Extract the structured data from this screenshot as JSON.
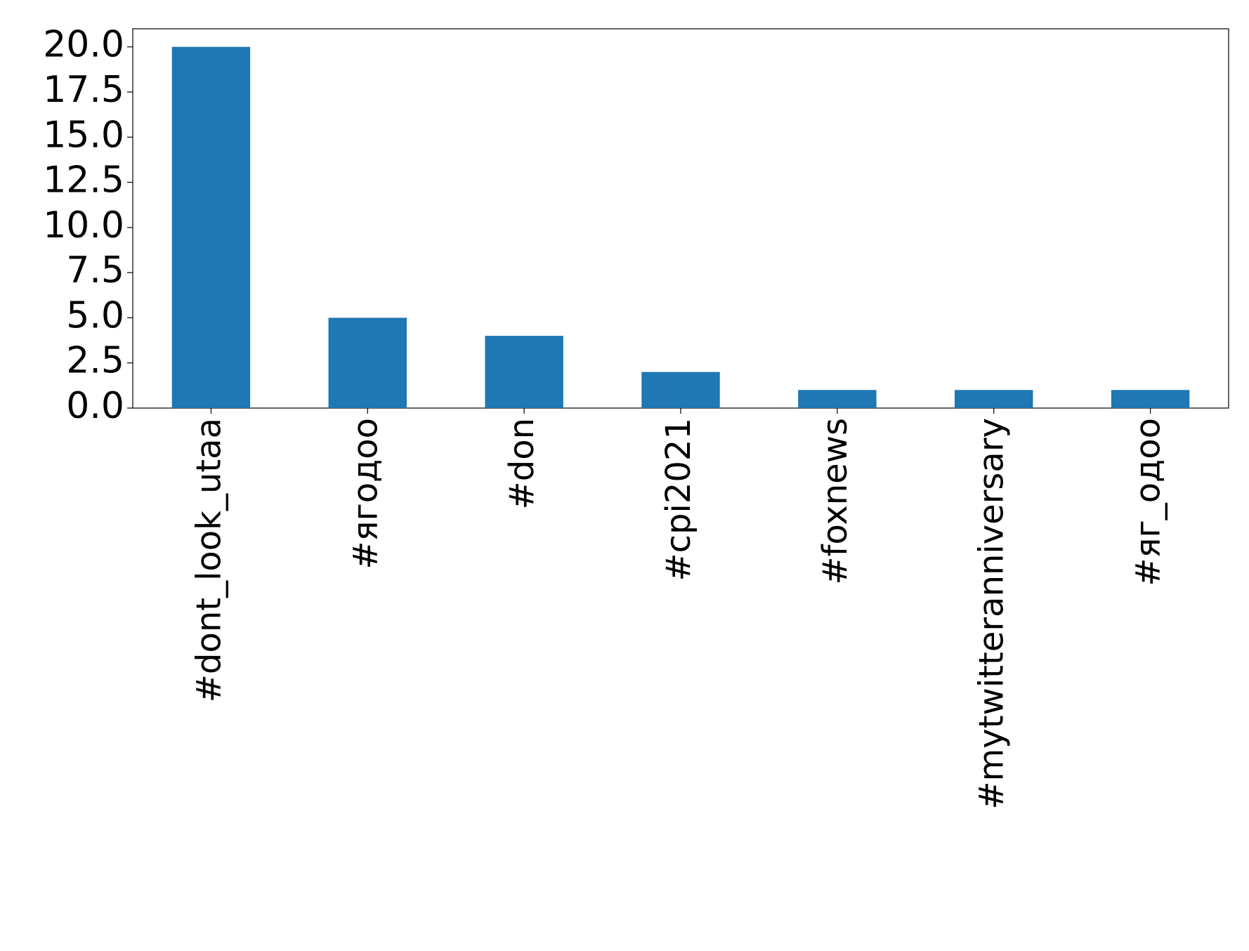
{
  "chart_data": {
    "type": "bar",
    "categories": [
      "#dont_look_utaa",
      "#ягодоо",
      "#don",
      "#cpi2021",
      "#foxnews",
      "#mytwitteranniversary",
      "#яг_одоо"
    ],
    "values": [
      20,
      5,
      4,
      2,
      1,
      1,
      1
    ],
    "color": "#1f77b4",
    "ylim": [
      0,
      21
    ],
    "yticks": [
      {
        "value": 0,
        "label": "0.0"
      },
      {
        "value": 2.5,
        "label": "2.5"
      },
      {
        "value": 5,
        "label": "5.0"
      },
      {
        "value": 7.5,
        "label": "7.5"
      },
      {
        "value": 10,
        "label": "10.0"
      },
      {
        "value": 12.5,
        "label": "12.5"
      },
      {
        "value": 15,
        "label": "15.0"
      },
      {
        "value": 17.5,
        "label": "17.5"
      },
      {
        "value": 20,
        "label": "20.0"
      }
    ],
    "grid": false
  }
}
